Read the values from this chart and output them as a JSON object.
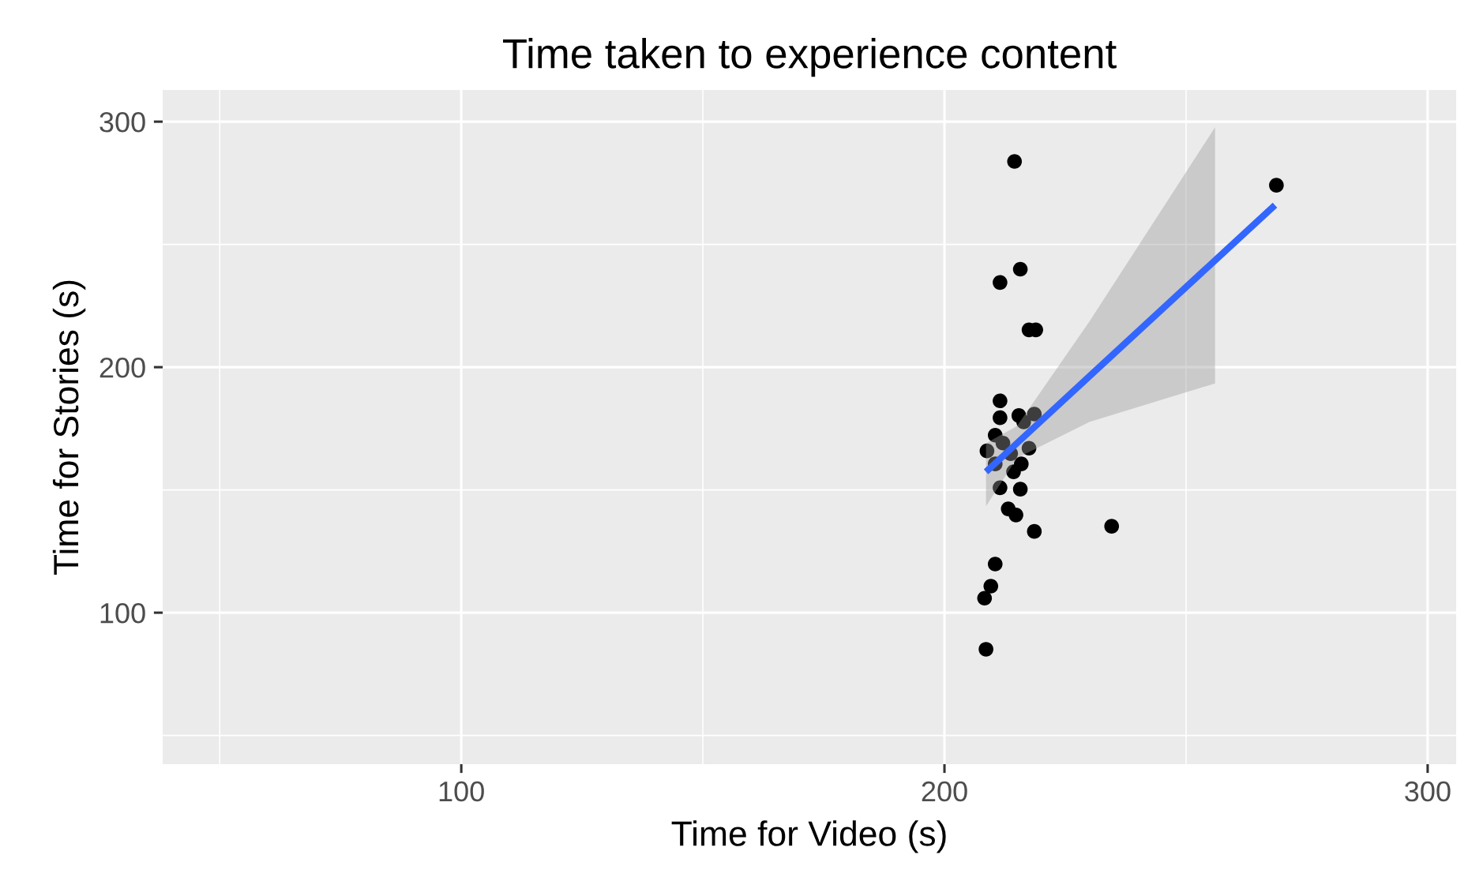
{
  "chart_data": {
    "type": "scatter",
    "title": "Time taken to experience content",
    "xlabel": "Time for Video (s)",
    "ylabel": "Time for Stories (s)",
    "xlim": [
      38.2,
      305.9
    ],
    "ylim": [
      38.3,
      312.9
    ],
    "xticks": [
      100,
      200,
      300
    ],
    "yticks": [
      100,
      200,
      300
    ],
    "grid": true,
    "series": [
      {
        "marker": "circle",
        "color": "#000000",
        "x": [
          214.5,
          215.7,
          211.5,
          217.5,
          218.9,
          268.7,
          234.6,
          218.6,
          211.5,
          211.5,
          215.4,
          218.6,
          210.5,
          208.8,
          210.5,
          215.9,
          217.5,
          213.7,
          211.5,
          215.7,
          213.2,
          214.8,
          210.5,
          209.6,
          208.3,
          208.6,
          212.1,
          214.3,
          216.4
        ],
        "values": [
          283.8,
          239.9,
          234.5,
          215.2,
          215.2,
          274.1,
          135.2,
          133.1,
          186.3,
          179.4,
          180.3,
          180.9,
          172.3,
          165.9,
          160.6,
          160.6,
          167.0,
          164.8,
          150.9,
          150.3,
          142.3,
          139.8,
          119.8,
          110.8,
          105.9,
          85.1,
          169.1,
          157.4,
          177.7
        ]
      },
      {
        "type": "line",
        "color": "#3366ff",
        "x": [
          208.6,
          215,
          230,
          256,
          268.4
        ],
        "values": [
          157.4,
          169.0,
          196.3,
          243.5,
          266.0
        ],
        "lower": [
          143.4,
          163,
          177.7,
          193.4,
          null
        ],
        "upper": [
          169,
          176,
          218.6,
          297.7,
          null
        ]
      }
    ]
  }
}
